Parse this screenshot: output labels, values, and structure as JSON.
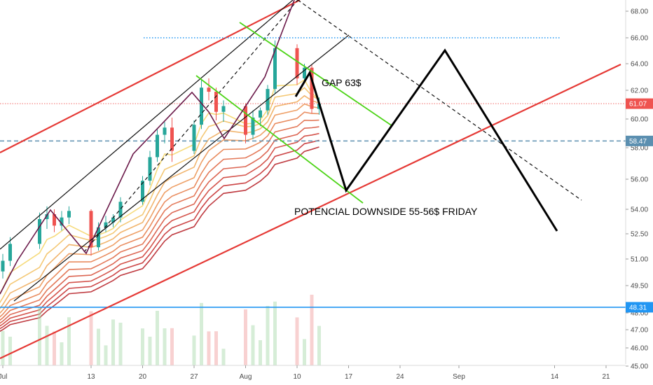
{
  "chart_data": {
    "type": "candlestick",
    "y_axis": {
      "ticks": [
        {
          "label": "68.00",
          "value": 68.0
        },
        {
          "label": "66.00",
          "value": 66.0
        },
        {
          "label": "64.00",
          "value": 64.0
        },
        {
          "label": "62.00",
          "value": 62.0
        },
        {
          "label": "60.00",
          "value": 60.0
        },
        {
          "label": "58.00",
          "value": 58.0
        },
        {
          "label": "56.00",
          "value": 56.0
        },
        {
          "label": "54.00",
          "value": 54.0
        },
        {
          "label": "52.50",
          "value": 52.5
        },
        {
          "label": "51.00",
          "value": 51.0
        },
        {
          "label": "49.50",
          "value": 49.5
        },
        {
          "label": "48.00",
          "value": 48.0
        },
        {
          "label": "47.00",
          "value": 47.0
        },
        {
          "label": "46.00",
          "value": 46.0
        },
        {
          "label": "45.00",
          "value": 45.0
        }
      ],
      "scale": "log"
    },
    "x_axis": {
      "ticks": [
        {
          "label": "Jul",
          "date": "2020-07-01"
        },
        {
          "label": "13",
          "date": "2020-07-13"
        },
        {
          "label": "20",
          "date": "2020-07-20"
        },
        {
          "label": "27",
          "date": "2020-07-27"
        },
        {
          "label": "Aug",
          "date": "2020-08-03"
        },
        {
          "label": "10",
          "date": "2020-08-10"
        },
        {
          "label": "17",
          "date": "2020-08-17"
        },
        {
          "label": "24",
          "date": "2020-08-24"
        },
        {
          "label": "Sep",
          "date": "2020-09-01"
        },
        {
          "label": "14",
          "date": "2020-09-14"
        },
        {
          "label": "21",
          "date": "2020-09-21"
        }
      ]
    },
    "price_tags": [
      {
        "label": "61.07",
        "value": 61.07,
        "color": "#ef5350"
      },
      {
        "label": "58.47",
        "value": 58.47,
        "color": "#5b8fb0"
      },
      {
        "label": "48.31",
        "value": 48.31,
        "color": "#2196f3"
      }
    ],
    "ohlc": [
      {
        "date": "2020-06-29",
        "open": 48.4,
        "high": 49.6,
        "low": 47.9,
        "close": 49.2
      },
      {
        "date": "2020-06-30",
        "open": 49.2,
        "high": 50.6,
        "low": 48.9,
        "close": 50.3
      },
      {
        "date": "2020-07-01",
        "open": 50.3,
        "high": 51.3,
        "low": 49.9,
        "close": 50.9
      },
      {
        "date": "2020-07-02",
        "open": 50.9,
        "high": 52.3,
        "low": 50.6,
        "close": 51.9
      },
      {
        "date": "2020-07-06",
        "open": 51.9,
        "high": 53.8,
        "low": 51.6,
        "close": 53.4
      },
      {
        "date": "2020-07-07",
        "open": 53.4,
        "high": 54.2,
        "low": 52.8,
        "close": 53.7
      },
      {
        "date": "2020-07-08",
        "open": 53.7,
        "high": 54.0,
        "low": 52.6,
        "close": 53.0
      },
      {
        "date": "2020-07-09",
        "open": 53.0,
        "high": 53.9,
        "low": 52.7,
        "close": 53.5
      },
      {
        "date": "2020-07-10",
        "open": 53.5,
        "high": 54.2,
        "low": 53.1,
        "close": 53.9
      },
      {
        "date": "2020-07-13",
        "open": 53.9,
        "high": 54.0,
        "low": 51.2,
        "close": 51.7
      },
      {
        "date": "2020-07-14",
        "open": 51.7,
        "high": 53.2,
        "low": 51.5,
        "close": 52.9
      },
      {
        "date": "2020-07-15",
        "open": 52.9,
        "high": 53.6,
        "low": 52.6,
        "close": 53.2
      },
      {
        "date": "2020-07-16",
        "open": 53.2,
        "high": 53.7,
        "low": 52.9,
        "close": 53.5
      },
      {
        "date": "2020-07-17",
        "open": 53.5,
        "high": 54.8,
        "low": 53.2,
        "close": 54.5
      },
      {
        "date": "2020-07-20",
        "open": 54.5,
        "high": 56.2,
        "low": 54.3,
        "close": 55.9
      },
      {
        "date": "2020-07-21",
        "open": 55.9,
        "high": 57.8,
        "low": 55.6,
        "close": 57.4
      },
      {
        "date": "2020-07-22",
        "open": 57.4,
        "high": 59.3,
        "low": 57.1,
        "close": 58.9
      },
      {
        "date": "2020-07-23",
        "open": 58.9,
        "high": 59.8,
        "low": 58.3,
        "close": 59.4
      },
      {
        "date": "2020-07-24",
        "open": 59.4,
        "high": 60.1,
        "low": 57.1,
        "close": 57.8
      },
      {
        "date": "2020-07-27",
        "open": 57.8,
        "high": 59.9,
        "low": 57.6,
        "close": 59.6
      },
      {
        "date": "2020-07-28",
        "open": 59.6,
        "high": 62.8,
        "low": 59.3,
        "close": 62.2
      },
      {
        "date": "2020-07-29",
        "open": 62.2,
        "high": 62.9,
        "low": 61.3,
        "close": 61.9
      },
      {
        "date": "2020-07-30",
        "open": 61.9,
        "high": 62.2,
        "low": 59.9,
        "close": 60.5
      },
      {
        "date": "2020-07-31",
        "open": 60.5,
        "high": 61.3,
        "low": 59.8,
        "close": 60.9
      },
      {
        "date": "2020-08-03",
        "open": 60.9,
        "high": 61.1,
        "low": 58.3,
        "close": 58.9
      },
      {
        "date": "2020-08-04",
        "open": 58.9,
        "high": 60.6,
        "low": 58.6,
        "close": 60.1
      },
      {
        "date": "2020-08-05",
        "open": 60.1,
        "high": 60.8,
        "low": 59.5,
        "close": 60.6
      },
      {
        "date": "2020-08-06",
        "open": 60.6,
        "high": 62.4,
        "low": 60.3,
        "close": 62.1
      },
      {
        "date": "2020-08-07",
        "open": 62.1,
        "high": 65.8,
        "low": 61.8,
        "close": 65.2
      },
      {
        "date": "2020-08-10",
        "open": 65.2,
        "high": 65.5,
        "low": 62.4,
        "close": 62.9
      },
      {
        "date": "2020-08-11",
        "open": 62.9,
        "high": 64.0,
        "low": 62.7,
        "close": 63.7
      },
      {
        "date": "2020-08-12",
        "open": 63.7,
        "high": 63.9,
        "low": 60.4,
        "close": 60.7
      },
      {
        "date": "2020-08-13",
        "open": 60.7,
        "high": 61.5,
        "low": 60.3,
        "close": 61.07
      }
    ],
    "annotations": [
      {
        "text": "GAP 63$",
        "value": 63.0
      },
      {
        "text": "POTENCIAL DOWNSIDE 55-56$ FRIDAY",
        "value": 54.2
      }
    ]
  }
}
